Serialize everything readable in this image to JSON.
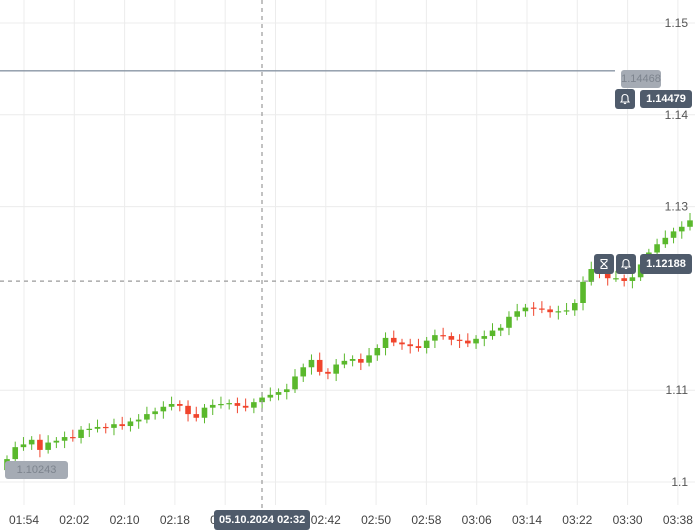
{
  "chart_data": {
    "type": "candlestick",
    "x_ticks": [
      "01:54",
      "02:02",
      "02:10",
      "02:18",
      "02:26",
      "02:34",
      "02:42",
      "02:50",
      "02:58",
      "03:06",
      "03:14",
      "03:22",
      "03:30",
      "03:38"
    ],
    "y_ticks": [
      "1.15",
      "1.14",
      "1.13",
      "1.11",
      "1.1"
    ],
    "ylim": [
      1.0975,
      1.1525
    ],
    "grid": true,
    "colors": {
      "up": "#5ab82c",
      "down": "#f0442c",
      "line": "#8a96a4",
      "crosshair": "#9a9a9a"
    },
    "closes": [
      1.1025,
      1.1038,
      1.1041,
      1.1046,
      1.1035,
      1.1043,
      1.1045,
      1.1049,
      1.1048,
      1.1057,
      1.1058,
      1.106,
      1.1059,
      1.1063,
      1.1061,
      1.1066,
      1.1068,
      1.1074,
      1.1077,
      1.1082,
      1.1085,
      1.1083,
      1.1074,
      1.107,
      1.1081,
      1.1084,
      1.1085,
      1.1086,
      1.1083,
      1.1081,
      1.1087,
      1.1092,
      1.1095,
      1.1098,
      1.1101,
      1.1115,
      1.1125,
      1.1133,
      1.112,
      1.1118,
      1.1128,
      1.1132,
      1.1134,
      1.113,
      1.1138,
      1.1146,
      1.1157,
      1.1152,
      1.115,
      1.1148,
      1.1146,
      1.1154,
      1.116,
      1.1159,
      1.1155,
      1.1154,
      1.1151,
      1.1156,
      1.1159,
      1.1165,
      1.1168,
      1.118,
      1.1186,
      1.119,
      1.1189,
      1.1188,
      1.1185,
      1.1186,
      1.1187,
      1.1195,
      1.1218,
      1.1232,
      1.1228,
      1.1222,
      1.1222,
      1.1219,
      1.1223,
      1.1237,
      1.125,
      1.1259,
      1.1266,
      1.1273,
      1.1278,
      1.1285
    ],
    "crosshair": {
      "time_label": "05.10.2024 02:32",
      "price_label": "1.12188"
    },
    "current_price": "1.14479",
    "ghost_labels": {
      "top": "1.14468",
      "bottom": "1.10243"
    }
  },
  "icons": {
    "bell": "bell-icon",
    "timer": "hourglass-icon"
  }
}
